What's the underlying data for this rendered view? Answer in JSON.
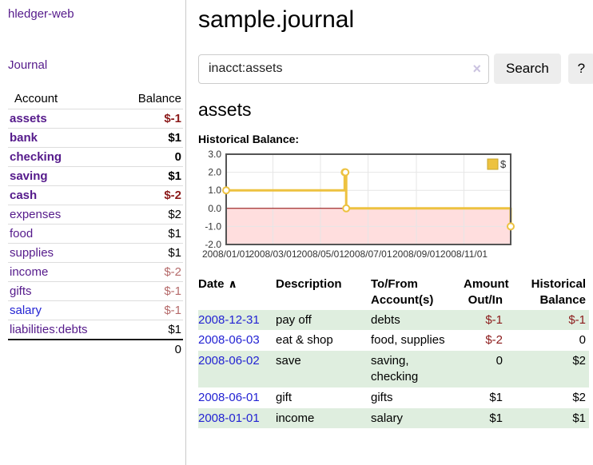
{
  "app": {
    "brand": "hledger-web"
  },
  "sidebar": {
    "nav": {
      "journal_label": "Journal"
    },
    "accounts_table": {
      "headers": {
        "account": "Account",
        "balance": "Balance"
      },
      "rows": [
        {
          "name": "assets",
          "indent": 1,
          "bold": true,
          "balance": "$-1",
          "negative": true,
          "unvisited": false
        },
        {
          "name": "bank",
          "indent": 2,
          "bold": true,
          "balance": "$1",
          "negative": false,
          "unvisited": false
        },
        {
          "name": "checking",
          "indent": 3,
          "bold": true,
          "balance": "0",
          "negative": false,
          "unvisited": false
        },
        {
          "name": "saving",
          "indent": 3,
          "bold": true,
          "balance": "$1",
          "negative": false,
          "unvisited": false
        },
        {
          "name": "cash",
          "indent": 2,
          "bold": true,
          "balance": "$-2",
          "negative": true,
          "unvisited": false
        },
        {
          "name": "expenses",
          "indent": 1,
          "bold": false,
          "balance": "$2",
          "negative": false,
          "unvisited": false
        },
        {
          "name": "food",
          "indent": 2,
          "bold": false,
          "balance": "$1",
          "negative": false,
          "unvisited": false
        },
        {
          "name": "supplies",
          "indent": 2,
          "bold": false,
          "balance": "$1",
          "negative": false,
          "unvisited": false
        },
        {
          "name": "income",
          "indent": 1,
          "bold": false,
          "balance": "$-2",
          "negative": true,
          "unvisited": false
        },
        {
          "name": "gifts",
          "indent": 2,
          "bold": false,
          "balance": "$-1",
          "negative": true,
          "unvisited": false
        },
        {
          "name": "salary",
          "indent": 2,
          "bold": false,
          "balance": "$-1",
          "negative": true,
          "unvisited": true
        },
        {
          "name": "liabilities:debts",
          "indent": 1,
          "bold": false,
          "balance": "$1",
          "negative": false,
          "unvisited": false
        }
      ],
      "total": "0"
    }
  },
  "header": {
    "title": "sample.journal"
  },
  "search": {
    "value": "inacct:assets",
    "button_label": "Search",
    "help_label": "?"
  },
  "account_page": {
    "title": "assets",
    "chart_label": "Historical Balance:"
  },
  "chart_data": {
    "type": "line",
    "steps": true,
    "legend": {
      "position": "top-right",
      "label": "$"
    },
    "ylim": [
      -2,
      3
    ],
    "x_range": [
      "2008-01-01",
      "2008-12-31"
    ],
    "x_ticks": [
      {
        "date": "2008-01-01",
        "label": "2008/01/01"
      },
      {
        "date": "2008-03-01",
        "label": "2008/03/01"
      },
      {
        "date": "2008-05-01",
        "label": "2008/05/01"
      },
      {
        "date": "2008-07-01",
        "label": "2008/07/01"
      },
      {
        "date": "2008-09-01",
        "label": "2008/09/01"
      },
      {
        "date": "2008-11-01",
        "label": "2008/11/01"
      }
    ],
    "y_ticks": [
      {
        "value": 3,
        "label": "3.0"
      },
      {
        "value": 2,
        "label": "2.0"
      },
      {
        "value": 1,
        "label": "1.0"
      },
      {
        "value": 0,
        "label": "0.0"
      },
      {
        "value": -1,
        "label": "-1.0"
      },
      {
        "value": -2,
        "label": "-2.0"
      }
    ],
    "series": [
      {
        "name": "$",
        "color": "#edc240",
        "points": [
          {
            "date": "2008-01-01",
            "value": 1
          },
          {
            "date": "2008-06-01",
            "value": 2
          },
          {
            "date": "2008-06-02",
            "value": 2
          },
          {
            "date": "2008-06-03",
            "value": 0
          },
          {
            "date": "2008-12-31",
            "value": -1
          }
        ]
      }
    ],
    "negative_region_shaded": true
  },
  "register": {
    "headers": [
      {
        "line1": "Date",
        "line2": ""
      },
      {
        "line1": "Description",
        "line2": ""
      },
      {
        "line1": "To/From",
        "line2": "Account(s)"
      },
      {
        "line1": "Amount",
        "line2": "Out/In"
      },
      {
        "line1": "Historical",
        "line2": "Balance"
      }
    ],
    "rows": [
      {
        "date": "2008-12-31",
        "description": "pay off",
        "accounts": "debts",
        "amount": "$-1",
        "amount_neg": true,
        "balance": "$-1",
        "balance_neg": true
      },
      {
        "date": "2008-06-03",
        "description": "eat & shop",
        "accounts": "food, supplies",
        "amount": "$-2",
        "amount_neg": true,
        "balance": "0",
        "balance_neg": false
      },
      {
        "date": "2008-06-02",
        "description": "save",
        "accounts": "saving, checking",
        "amount": "0",
        "amount_neg": false,
        "balance": "$2",
        "balance_neg": false
      },
      {
        "date": "2008-06-01",
        "description": "gift",
        "accounts": "gifts",
        "amount": "$1",
        "amount_neg": false,
        "balance": "$2",
        "balance_neg": false
      },
      {
        "date": "2008-01-01",
        "description": "income",
        "accounts": "salary",
        "amount": "$1",
        "amount_neg": false,
        "balance": "$1",
        "balance_neg": false
      }
    ]
  },
  "icons": {
    "clear": "×",
    "sort_asc": "∧"
  },
  "colors": {
    "link_visited": "#551a8b",
    "link_unvisited": "#2323d3",
    "negative_strong": "#8b1a1a",
    "negative_dim": "#b56a6a",
    "row_alt_green": "#dfeedf",
    "chart_line": "#edc240",
    "chart_negative_fill": "#ffdede",
    "chart_zero_line": "#8b0000",
    "chart_grid": "#e6e6e6",
    "chart_border": "#545454"
  }
}
